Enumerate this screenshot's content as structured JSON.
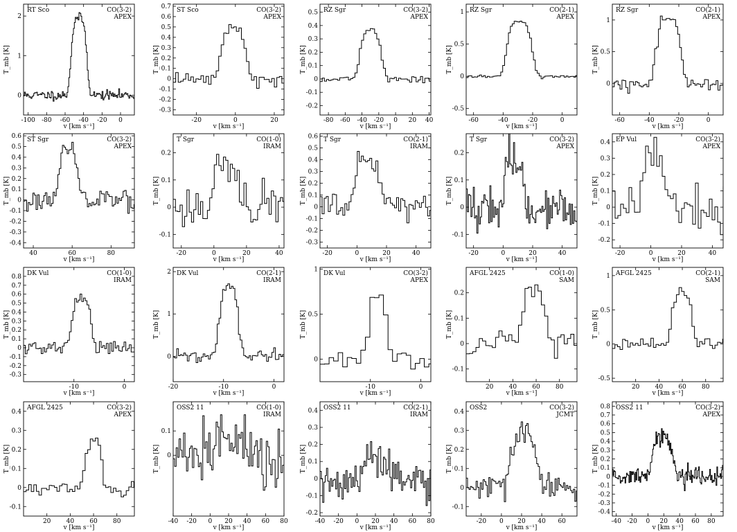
{
  "chart_data": [
    {
      "type": "line",
      "title": "RT Sco",
      "transition": "CO(3-2)",
      "telescope": "APEX",
      "xlabel": "v [km s⁻¹]",
      "ylabel": "T_mb [K]",
      "xlim": [
        -105,
        15
      ],
      "ylim": [
        -0.5,
        2.3
      ],
      "xticks": [
        -100,
        -80,
        -60,
        -40,
        -20,
        0
      ],
      "yticks": [
        0,
        1,
        2
      ],
      "series": [
        {
          "name": "",
          "center": -45,
          "width": 8,
          "peak": 1.95,
          "noise": 0.06,
          "step": 1,
          "seed": 11
        }
      ]
    },
    {
      "type": "line",
      "title": "ST Sco",
      "transition": "CO(3-2)",
      "telescope": "APEX",
      "xlabel": "v [km s⁻¹]",
      "ylabel": "T_mb [K]",
      "xlim": [
        -32,
        25
      ],
      "ylim": [
        -0.35,
        0.72
      ],
      "xticks": [
        -20,
        0,
        20
      ],
      "yticks": [
        -0.3,
        -0.2,
        -0.1,
        0,
        0.1,
        0.2,
        0.3,
        0.4,
        0.5,
        0.6,
        0.7
      ],
      "series": [
        {
          "name": "",
          "center": -1,
          "width": 6,
          "peak": 0.5,
          "noise": 0.03,
          "step": 1.3,
          "seed": 12
        }
      ]
    },
    {
      "type": "line",
      "title": "RZ Sgr",
      "transition": "CO(3-2)",
      "telescope": "APEX",
      "xlabel": "v [km s⁻¹]",
      "ylabel": "T_mb [K]",
      "xlim": [
        -90,
        42
      ],
      "ylim": [
        -0.27,
        0.56
      ],
      "xticks": [
        -80,
        -60,
        -40,
        -20,
        0,
        20,
        40
      ],
      "yticks": [
        -0.2,
        -0.1,
        0,
        0.1,
        0.2,
        0.3,
        0.4,
        0.5
      ],
      "series": [
        {
          "name": "",
          "center": -30,
          "width": 12,
          "peak": 0.36,
          "noise": 0.012,
          "step": 2.6,
          "seed": 13
        }
      ]
    },
    {
      "type": "line",
      "title": "RZ Sgr",
      "transition": "CO(2-1)",
      "telescope": "APEX",
      "xlabel": "v [km s⁻¹]",
      "ylabel": "T_mb [K]",
      "xlim": [
        -65,
        10
      ],
      "ylim": [
        -0.6,
        1.12
      ],
      "xticks": [
        -60,
        -40,
        -20,
        0
      ],
      "yticks": [
        -0.5,
        0,
        0.5,
        1
      ],
      "series": [
        {
          "name": "",
          "center": -29,
          "width": 8,
          "peak": 0.86,
          "noise": 0.012,
          "step": 1.3,
          "seed": 14
        }
      ]
    },
    {
      "type": "line",
      "title": "RZ Sgr",
      "transition": "CO(2-1)",
      "telescope": "APEX",
      "xlabel": "v [km s⁻¹]",
      "ylabel": "T_mb [K]",
      "xlim": [
        -65,
        10
      ],
      "ylim": [
        -0.5,
        1.25
      ],
      "xticks": [
        -60,
        -40,
        -20,
        0
      ],
      "yticks": [
        0,
        0.5,
        1
      ],
      "series": [
        {
          "name": "",
          "center": -27,
          "width": 8,
          "peak": 1.0,
          "noise": 0.05,
          "step": 1.3,
          "seed": 15
        }
      ]
    },
    {
      "type": "line",
      "title": "ST Sgr",
      "transition": "CO(3-2)",
      "telescope": "APEX",
      "xlabel": "v [km s⁻¹]",
      "ylabel": "T_mb [K]",
      "xlim": [
        35,
        92
      ],
      "ylim": [
        -0.45,
        0.62
      ],
      "xticks": [
        40,
        60,
        80
      ],
      "yticks": [
        -0.4,
        -0.3,
        -0.2,
        -0.1,
        0,
        0.1,
        0.2,
        0.3,
        0.4,
        0.5,
        0.6
      ],
      "series": [
        {
          "name": "",
          "center": 58,
          "width": 4.5,
          "peak": 0.46,
          "noise": 0.05,
          "step": 0.8,
          "seed": 16
        }
      ]
    },
    {
      "type": "line",
      "title": "T Sgr",
      "transition": "CO(1-0)",
      "telescope": "IRAM",
      "xlabel": "v [km s⁻¹]",
      "ylabel": "T_mb [K]",
      "xlim": [
        -25,
        43
      ],
      "ylim": [
        -0.15,
        0.27
      ],
      "xticks": [
        -20,
        0,
        20,
        40
      ],
      "yticks": [
        -0.1,
        0,
        0.1,
        0.2
      ],
      "series": [
        {
          "name": "",
          "center": 8,
          "width": 8,
          "peak": 0.15,
          "noise": 0.04,
          "step": 1.4,
          "seed": 17
        }
      ]
    },
    {
      "type": "line",
      "title": "T Sgr",
      "transition": "CO(2-1)",
      "telescope": "IRAM",
      "xlabel": "v [km s⁻¹]",
      "ylabel": "T_mb [K]",
      "xlim": [
        -25,
        50
      ],
      "ylim": [
        -0.35,
        0.62
      ],
      "xticks": [
        -20,
        0,
        20,
        40
      ],
      "yticks": [
        -0.3,
        -0.2,
        -0.1,
        0,
        0.1,
        0.2,
        0.3,
        0.4,
        0.5,
        0.6
      ],
      "series": [
        {
          "name": "",
          "center": 7,
          "width": 8,
          "peak": 0.37,
          "noise": 0.06,
          "step": 1.4,
          "seed": 18
        }
      ]
    },
    {
      "type": "line",
      "title": "T Sgr",
      "transition": "CO(3-2)",
      "telescope": "APEX",
      "xlabel": "v [km s⁻¹]",
      "ylabel": "T_mb [K]",
      "xlim": [
        -25,
        50
      ],
      "ylim": [
        -0.15,
        0.27
      ],
      "xticks": [
        -20,
        0,
        20,
        40
      ],
      "yticks": [
        -0.1,
        0,
        0.1,
        0.2
      ],
      "series": [
        {
          "name": "",
          "center": 7,
          "width": 6,
          "peak": 0.18,
          "noise": 0.04,
          "step": 0.8,
          "seed": 19
        }
      ]
    },
    {
      "type": "line",
      "title": "EP Vul",
      "transition": "CO(3-2)",
      "telescope": "APEX",
      "xlabel": "v [km s⁻¹]",
      "ylabel": "T_mb [K]",
      "xlim": [
        -25,
        47
      ],
      "ylim": [
        -0.25,
        0.45
      ],
      "xticks": [
        -20,
        0,
        20,
        40
      ],
      "yticks": [
        -0.2,
        -0.1,
        0,
        0.1,
        0.2,
        0.3,
        0.4
      ],
      "series": [
        {
          "name": "",
          "center": 2,
          "width": 7,
          "peak": 0.32,
          "noise": 0.07,
          "step": 1.8,
          "seed": 20
        }
      ]
    },
    {
      "type": "line",
      "title": "DK Vul",
      "transition": "CO(1-0)",
      "telescope": "IRAM",
      "xlabel": "v [km s⁻¹]",
      "ylabel": "T_mb [K]",
      "xlim": [
        -20,
        2
      ],
      "ylim": [
        -0.38,
        0.9
      ],
      "xticks": [
        -10,
        0
      ],
      "yticks": [
        -0.3,
        -0.2,
        -0.1,
        0,
        0.1,
        0.2,
        0.3,
        0.4,
        0.5,
        0.6,
        0.7,
        0.8
      ],
      "series": [
        {
          "name": "",
          "center": -8.5,
          "width": 1.8,
          "peak": 0.55,
          "noise": 0.04,
          "step": 0.35,
          "seed": 21
        }
      ]
    },
    {
      "type": "line",
      "title": "DK Vul",
      "transition": "CO(2-1)",
      "telescope": "IRAM",
      "xlabel": "v [km s⁻¹]",
      "ylabel": "T_mb [K]",
      "xlim": [
        -20,
        2
      ],
      "ylim": [
        -0.6,
        2.1
      ],
      "xticks": [
        -20,
        -10,
        0
      ],
      "yticks": [
        0,
        1,
        2
      ],
      "series": [
        {
          "name": "",
          "center": -9,
          "width": 1.8,
          "peak": 1.6,
          "noise": 0.08,
          "step": 0.35,
          "seed": 22
        }
      ]
    },
    {
      "type": "line",
      "title": "DK Vul",
      "transition": "CO(3-2)",
      "telescope": "APEX",
      "xlabel": "v [km s⁻¹]",
      "ylabel": "T_mb [K]",
      "xlim": [
        -20,
        2
      ],
      "ylim": [
        -0.25,
        1.02
      ],
      "xticks": [
        -10,
        0
      ],
      "yticks": [
        0,
        0.5,
        1
      ],
      "series": [
        {
          "name": "",
          "center": -8.5,
          "width": 1.8,
          "peak": 0.72,
          "noise": 0.05,
          "step": 0.9,
          "seed": 23
        }
      ]
    },
    {
      "type": "line",
      "title": "AFGL 2425",
      "transition": "CO(1-0)",
      "telescope": "SAM",
      "xlabel": "v [km s⁻¹]",
      "ylabel": "T_mb [K]",
      "xlim": [
        0,
        95
      ],
      "ylim": [
        -0.15,
        0.3
      ],
      "xticks": [
        20,
        40,
        60,
        80
      ],
      "yticks": [
        -0.1,
        0,
        0.1,
        0.2
      ],
      "series": [
        {
          "name": "",
          "center": 58,
          "width": 9,
          "peak": 0.2,
          "noise": 0.025,
          "step": 2.8,
          "seed": 24
        }
      ]
    },
    {
      "type": "line",
      "title": "AFGL 2425",
      "transition": "CO(2-1)",
      "telescope": "SAM",
      "xlabel": "v [km s⁻¹]",
      "ylabel": "T_mb [K]",
      "xlim": [
        0,
        95
      ],
      "ylim": [
        -0.55,
        1.12
      ],
      "xticks": [
        20,
        40,
        60,
        80
      ],
      "yticks": [
        -0.5,
        0,
        0.5,
        1
      ],
      "series": [
        {
          "name": "",
          "center": 60,
          "width": 8,
          "peak": 0.75,
          "noise": 0.04,
          "step": 2.2,
          "seed": 25
        }
      ]
    },
    {
      "type": "line",
      "title": "AFGL 2425",
      "transition": "CO(3-2)",
      "telescope": "APEX",
      "xlabel": "v [km s⁻¹]",
      "ylabel": "T_mb [K]",
      "xlim": [
        0,
        95
      ],
      "ylim": [
        -0.15,
        0.45
      ],
      "xticks": [
        20,
        40,
        60,
        80
      ],
      "yticks": [
        -0.1,
        0,
        0.1,
        0.2,
        0.3,
        0.4
      ],
      "series": [
        {
          "name": "",
          "center": 60,
          "width": 7,
          "peak": 0.25,
          "noise": 0.02,
          "step": 2.2,
          "seed": 26
        }
      ]
    },
    {
      "type": "line",
      "title": "OSS2 11",
      "transition": "CO(1-0)",
      "telescope": "IRAM",
      "xlabel": "v [km s⁻¹]",
      "ylabel": "T_mb [K]",
      "xlim": [
        -40,
        80
      ],
      "ylim": [
        -0.25,
        0.22
      ],
      "xticks": [
        -40,
        -20,
        0,
        20,
        40,
        60,
        80
      ],
      "yticks": [
        0,
        0.1
      ],
      "series": [
        {
          "name": "",
          "center": 18,
          "width": 14,
          "peak": 0.07,
          "noise": 0.06,
          "step": 1.6,
          "seed": 27
        }
      ]
    },
    {
      "type": "line",
      "title": "OSS2 11",
      "transition": "CO(2-1)",
      "telescope": "IRAM",
      "xlabel": "v [km s⁻¹]",
      "ylabel": "T_mb [K]",
      "xlim": [
        -40,
        80
      ],
      "ylim": [
        -0.22,
        0.45
      ],
      "xticks": [
        -40,
        -20,
        0,
        20,
        40,
        60,
        80
      ],
      "yticks": [
        -0.2,
        -0.1,
        0,
        0.1,
        0.2,
        0.3,
        0.4
      ],
      "series": [
        {
          "name": "",
          "center": 22,
          "width": 14,
          "peak": 0.12,
          "noise": 0.06,
          "step": 1.4,
          "seed": 28
        }
      ]
    },
    {
      "type": "line",
      "title": "OSS2",
      "transition": "CO(3-2)",
      "telescope": "JCMT",
      "xlabel": "v [km s⁻¹]",
      "ylabel": "T_mb [K]",
      "xlim": [
        -35,
        75
      ],
      "ylim": [
        -0.15,
        0.45
      ],
      "xticks": [
        -20,
        0,
        20,
        40,
        60
      ],
      "yticks": [
        -0.1,
        0,
        0.1,
        0.2,
        0.3,
        0.4
      ],
      "series": [
        {
          "name": "",
          "center": 22,
          "width": 12,
          "peak": 0.28,
          "noise": 0.035,
          "step": 1.4,
          "seed": 29
        }
      ]
    },
    {
      "type": "line",
      "title": "OSS2 11",
      "transition": "CO(3-2)",
      "telescope": "APEX",
      "xlabel": "v [km s⁻¹]",
      "ylabel": "T_mb [K]",
      "xlim": [
        -45,
        95
      ],
      "ylim": [
        -0.45,
        0.85
      ],
      "xticks": [
        -40,
        -20,
        0,
        20,
        40,
        60,
        80
      ],
      "yticks": [
        -0.4,
        -0.3,
        -0.2,
        -0.1,
        0,
        0.1,
        0.2,
        0.3,
        0.4,
        0.5,
        0.6,
        0.7,
        0.8
      ],
      "series": [
        {
          "name": "",
          "center": 18,
          "width": 12,
          "peak": 0.45,
          "noise": 0.05,
          "step": 1,
          "seed": 30
        }
      ]
    }
  ]
}
